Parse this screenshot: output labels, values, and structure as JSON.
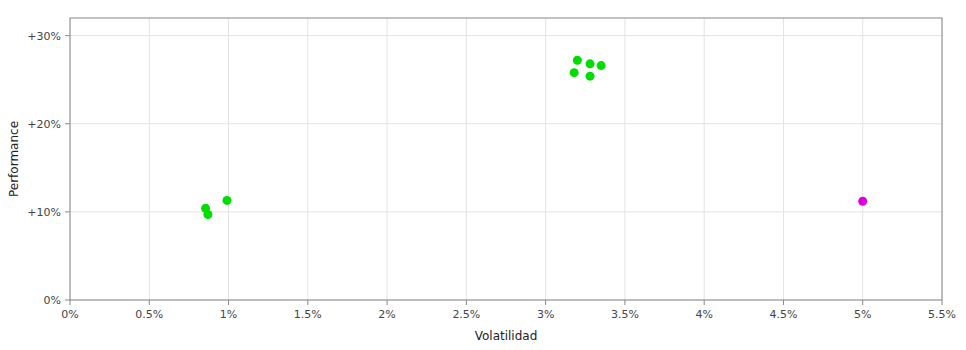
{
  "chart_data": {
    "type": "scatter",
    "xlabel": "Volatilidad",
    "ylabel": "Performance",
    "xlim": [
      0.0,
      0.055
    ],
    "ylim": [
      0.0,
      0.32
    ],
    "xticks": [
      {
        "value": 0.0,
        "label": "0%"
      },
      {
        "value": 0.005,
        "label": "0.5%"
      },
      {
        "value": 0.01,
        "label": "1%"
      },
      {
        "value": 0.015,
        "label": "1.5%"
      },
      {
        "value": 0.02,
        "label": "2%"
      },
      {
        "value": 0.025,
        "label": "2.5%"
      },
      {
        "value": 0.03,
        "label": "3%"
      },
      {
        "value": 0.035,
        "label": "3.5%"
      },
      {
        "value": 0.04,
        "label": "4%"
      },
      {
        "value": 0.045,
        "label": "4.5%"
      },
      {
        "value": 0.05,
        "label": "5%"
      },
      {
        "value": 0.055,
        "label": "5.5%"
      }
    ],
    "yticks": [
      {
        "value": 0.0,
        "label": "0%"
      },
      {
        "value": 0.1,
        "label": "+10%"
      },
      {
        "value": 0.2,
        "label": "+20%"
      },
      {
        "value": 0.3,
        "label": "+30%"
      }
    ],
    "grid": true,
    "series": [
      {
        "color": "#00dd00",
        "x": [
          0.032,
          0.0328,
          0.0335,
          0.0318,
          0.0328
        ],
        "values": [
          0.272,
          0.268,
          0.266,
          0.258,
          0.254
        ]
      },
      {
        "color": "#00dd00",
        "x": [
          0.00855,
          0.0087,
          0.0099
        ],
        "values": [
          0.104,
          0.097,
          0.113
        ]
      },
      {
        "color": "#dd00dd",
        "x": [
          0.05
        ],
        "values": [
          0.112
        ]
      }
    ]
  }
}
